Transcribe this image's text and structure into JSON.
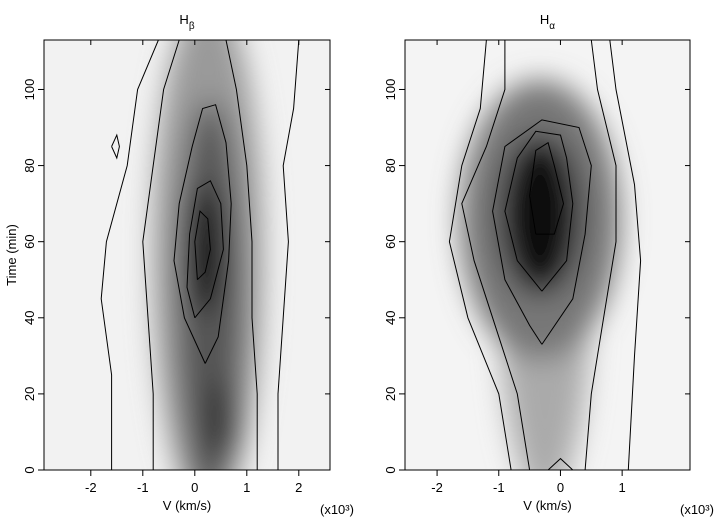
{
  "chart_data": [
    {
      "type": "contour",
      "title": "H",
      "title_subscript": "β",
      "xlabel": "V (km/s)",
      "ylabel": "Time (min)",
      "x_multiplier": "(x10³)",
      "xlim": [
        -2.9,
        2.6
      ],
      "xticks": [
        -2,
        -1,
        0,
        1,
        2
      ],
      "ylim": [
        0,
        113
      ],
      "yticks": [
        0,
        20,
        40,
        60,
        80,
        100
      ],
      "color": "#000000",
      "contours": [
        {
          "x": [
            0.05,
            0.2,
            0.3,
            0.25,
            0.1,
            0.0,
            0.05
          ],
          "y": [
            50,
            52,
            58,
            66,
            68,
            60,
            50
          ]
        },
        {
          "x": [
            0.0,
            0.3,
            0.55,
            0.5,
            0.3,
            0.05,
            -0.1,
            -0.15,
            0.0
          ],
          "y": [
            40,
            45,
            58,
            70,
            76,
            74,
            62,
            48,
            40
          ]
        },
        {
          "x": [
            0.2,
            0.45,
            0.65,
            0.7,
            0.6,
            0.4,
            0.15,
            -0.05,
            -0.3,
            -0.4,
            -0.2,
            0.2
          ],
          "y": [
            28,
            35,
            55,
            70,
            86,
            96,
            95,
            85,
            70,
            55,
            40,
            28
          ]
        },
        {
          "x": [
            -0.8,
            -0.8,
            -0.9,
            -1.0,
            -0.8,
            -0.6,
            -0.3
          ],
          "y": [
            0,
            20,
            40,
            60,
            80,
            100,
            113
          ]
        },
        {
          "x": [
            1.2,
            1.2,
            1.1,
            1.1,
            1.0,
            0.8,
            0.6
          ],
          "y": [
            0,
            20,
            40,
            60,
            80,
            100,
            113
          ]
        },
        {
          "x": [
            -1.6,
            -1.6,
            -1.8,
            -1.7,
            -1.3,
            -1.1,
            -0.7
          ],
          "y": [
            0,
            25,
            45,
            60,
            80,
            100,
            113
          ]
        },
        {
          "x": [
            1.6,
            1.6,
            1.7,
            1.8,
            1.7,
            1.9,
            2.0
          ],
          "y": [
            0,
            20,
            40,
            60,
            80,
            95,
            113
          ]
        },
        {
          "x": [
            -1.6,
            -1.5,
            -1.45,
            -1.5,
            -1.6
          ],
          "y": [
            85,
            88,
            85,
            82,
            85
          ]
        }
      ]
    },
    {
      "type": "contour",
      "title": "H",
      "title_subscript": "α",
      "xlabel": "V (km/s)",
      "x_multiplier": "(x10³)",
      "xlim": [
        -2.52,
        2.1
      ],
      "xticks": [
        -2,
        -1,
        0,
        1
      ],
      "ylim": [
        0,
        113
      ],
      "yticks": [
        0,
        20,
        40,
        60,
        80,
        100
      ],
      "color": "#000000",
      "contours": [
        {
          "x": [
            -0.4,
            -0.1,
            0.05,
            -0.1,
            -0.2,
            -0.4,
            -0.5,
            -0.4
          ],
          "y": [
            62,
            62,
            70,
            80,
            86,
            84,
            72,
            62
          ]
        },
        {
          "x": [
            -0.3,
            0.1,
            0.2,
            0.1,
            0.0,
            -0.4,
            -0.7,
            -0.9,
            -0.7,
            -0.3
          ],
          "y": [
            47,
            55,
            70,
            82,
            88,
            89,
            82,
            68,
            55,
            47
          ]
        },
        {
          "x": [
            -0.3,
            0.2,
            0.4,
            0.5,
            0.3,
            -0.3,
            -0.9,
            -1.1,
            -0.9,
            -0.5,
            -0.3
          ],
          "y": [
            33,
            45,
            62,
            80,
            90,
            92,
            85,
            68,
            50,
            38,
            33
          ]
        },
        {
          "x": [
            -0.5,
            -0.7,
            -1.0,
            -1.4,
            -1.6,
            -1.2,
            -0.9,
            -0.9
          ],
          "y": [
            0,
            20,
            35,
            55,
            70,
            85,
            100,
            113
          ]
        },
        {
          "x": [
            0.4,
            0.5,
            0.7,
            0.9,
            0.9,
            0.6,
            0.5
          ],
          "y": [
            0,
            20,
            40,
            60,
            80,
            100,
            113
          ]
        },
        {
          "x": [
            -0.8,
            -1.0,
            -1.5,
            -1.8,
            -1.6,
            -1.3,
            -1.2
          ],
          "y": [
            0,
            20,
            40,
            60,
            80,
            95,
            113
          ]
        },
        {
          "x": [
            1.1,
            1.2,
            1.3,
            1.2,
            0.9,
            0.8
          ],
          "y": [
            0,
            30,
            55,
            75,
            100,
            113
          ]
        },
        {
          "x": [
            -0.2,
            0.0,
            0.2
          ],
          "y": [
            0,
            3,
            0
          ]
        }
      ]
    }
  ]
}
